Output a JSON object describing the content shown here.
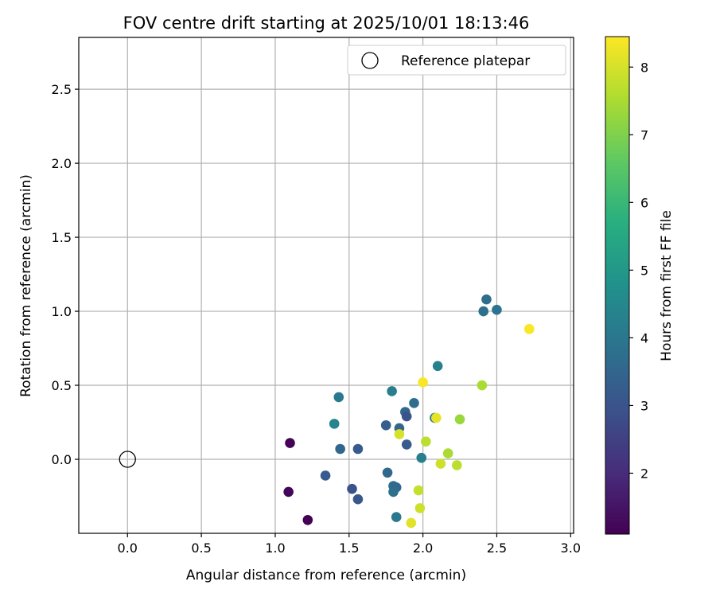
{
  "chart_data": {
    "type": "scatter",
    "title": "FOV centre drift starting at 2025/10/01 18:13:46",
    "xlabel": "Angular distance from reference (arcmin)",
    "ylabel": "Rotation from reference (arcmin)",
    "xlim": [
      -0.33,
      3.02
    ],
    "ylim": [
      -0.5,
      2.85
    ],
    "xticks": [
      "0.0",
      "0.5",
      "1.0",
      "1.5",
      "2.0",
      "2.5",
      "3.0"
    ],
    "yticks": [
      "0.0",
      "0.5",
      "1.0",
      "1.5",
      "2.0",
      "2.5"
    ],
    "grid": true,
    "legend": {
      "placement": "top-right",
      "entries": [
        "Reference platepar"
      ]
    },
    "reference_point": {
      "x": 0.0,
      "y": 0.0
    },
    "colorbar": {
      "label": "Hours from first FF file",
      "range": [
        1.1,
        8.45
      ],
      "ticks": [
        "2",
        "3",
        "4",
        "5",
        "6",
        "7",
        "8"
      ],
      "colormap": "viridis"
    },
    "points": [
      {
        "x": 1.1,
        "y": 0.11,
        "h": 1.15
      },
      {
        "x": 1.09,
        "y": -0.22,
        "h": 1.2
      },
      {
        "x": 1.22,
        "y": -0.41,
        "h": 1.1
      },
      {
        "x": 1.34,
        "y": -0.11,
        "h": 3.2
      },
      {
        "x": 1.52,
        "y": -0.2,
        "h": 3.0
      },
      {
        "x": 1.56,
        "y": -0.27,
        "h": 3.1
      },
      {
        "x": 1.44,
        "y": 0.07,
        "h": 3.5
      },
      {
        "x": 1.56,
        "y": 0.07,
        "h": 3.2
      },
      {
        "x": 1.43,
        "y": 0.42,
        "h": 4.1
      },
      {
        "x": 1.4,
        "y": 0.24,
        "h": 4.4
      },
      {
        "x": 1.75,
        "y": 0.23,
        "h": 3.3
      },
      {
        "x": 1.79,
        "y": 0.46,
        "h": 4.2
      },
      {
        "x": 1.76,
        "y": -0.09,
        "h": 3.6
      },
      {
        "x": 1.8,
        "y": -0.18,
        "h": 3.7
      },
      {
        "x": 1.82,
        "y": -0.19,
        "h": 3.6
      },
      {
        "x": 1.8,
        "y": -0.22,
        "h": 3.8
      },
      {
        "x": 1.82,
        "y": -0.39,
        "h": 4.0
      },
      {
        "x": 1.84,
        "y": 0.21,
        "h": 3.5
      },
      {
        "x": 1.84,
        "y": 0.17,
        "h": 8.0
      },
      {
        "x": 1.88,
        "y": 0.32,
        "h": 3.6
      },
      {
        "x": 1.89,
        "y": 0.29,
        "h": 3.0
      },
      {
        "x": 1.89,
        "y": 0.1,
        "h": 3.2
      },
      {
        "x": 1.94,
        "y": 0.38,
        "h": 3.7
      },
      {
        "x": 1.99,
        "y": 0.01,
        "h": 4.2
      },
      {
        "x": 2.0,
        "y": 0.52,
        "h": 8.4
      },
      {
        "x": 2.02,
        "y": 0.12,
        "h": 7.7
      },
      {
        "x": 1.97,
        "y": -0.21,
        "h": 7.8
      },
      {
        "x": 1.98,
        "y": -0.33,
        "h": 7.9
      },
      {
        "x": 1.92,
        "y": -0.43,
        "h": 8.1
      },
      {
        "x": 2.08,
        "y": 0.28,
        "h": 3.9
      },
      {
        "x": 2.09,
        "y": 0.28,
        "h": 8.2
      },
      {
        "x": 2.1,
        "y": 0.63,
        "h": 4.3
      },
      {
        "x": 2.12,
        "y": -0.03,
        "h": 7.9
      },
      {
        "x": 2.17,
        "y": 0.04,
        "h": 7.5
      },
      {
        "x": 2.23,
        "y": -0.04,
        "h": 7.7
      },
      {
        "x": 2.25,
        "y": 0.27,
        "h": 7.3
      },
      {
        "x": 2.4,
        "y": 0.5,
        "h": 7.5
      },
      {
        "x": 2.41,
        "y": 1.0,
        "h": 3.8
      },
      {
        "x": 2.43,
        "y": 1.08,
        "h": 3.7
      },
      {
        "x": 2.5,
        "y": 1.01,
        "h": 3.9
      },
      {
        "x": 2.72,
        "y": 0.88,
        "h": 8.4
      }
    ]
  }
}
